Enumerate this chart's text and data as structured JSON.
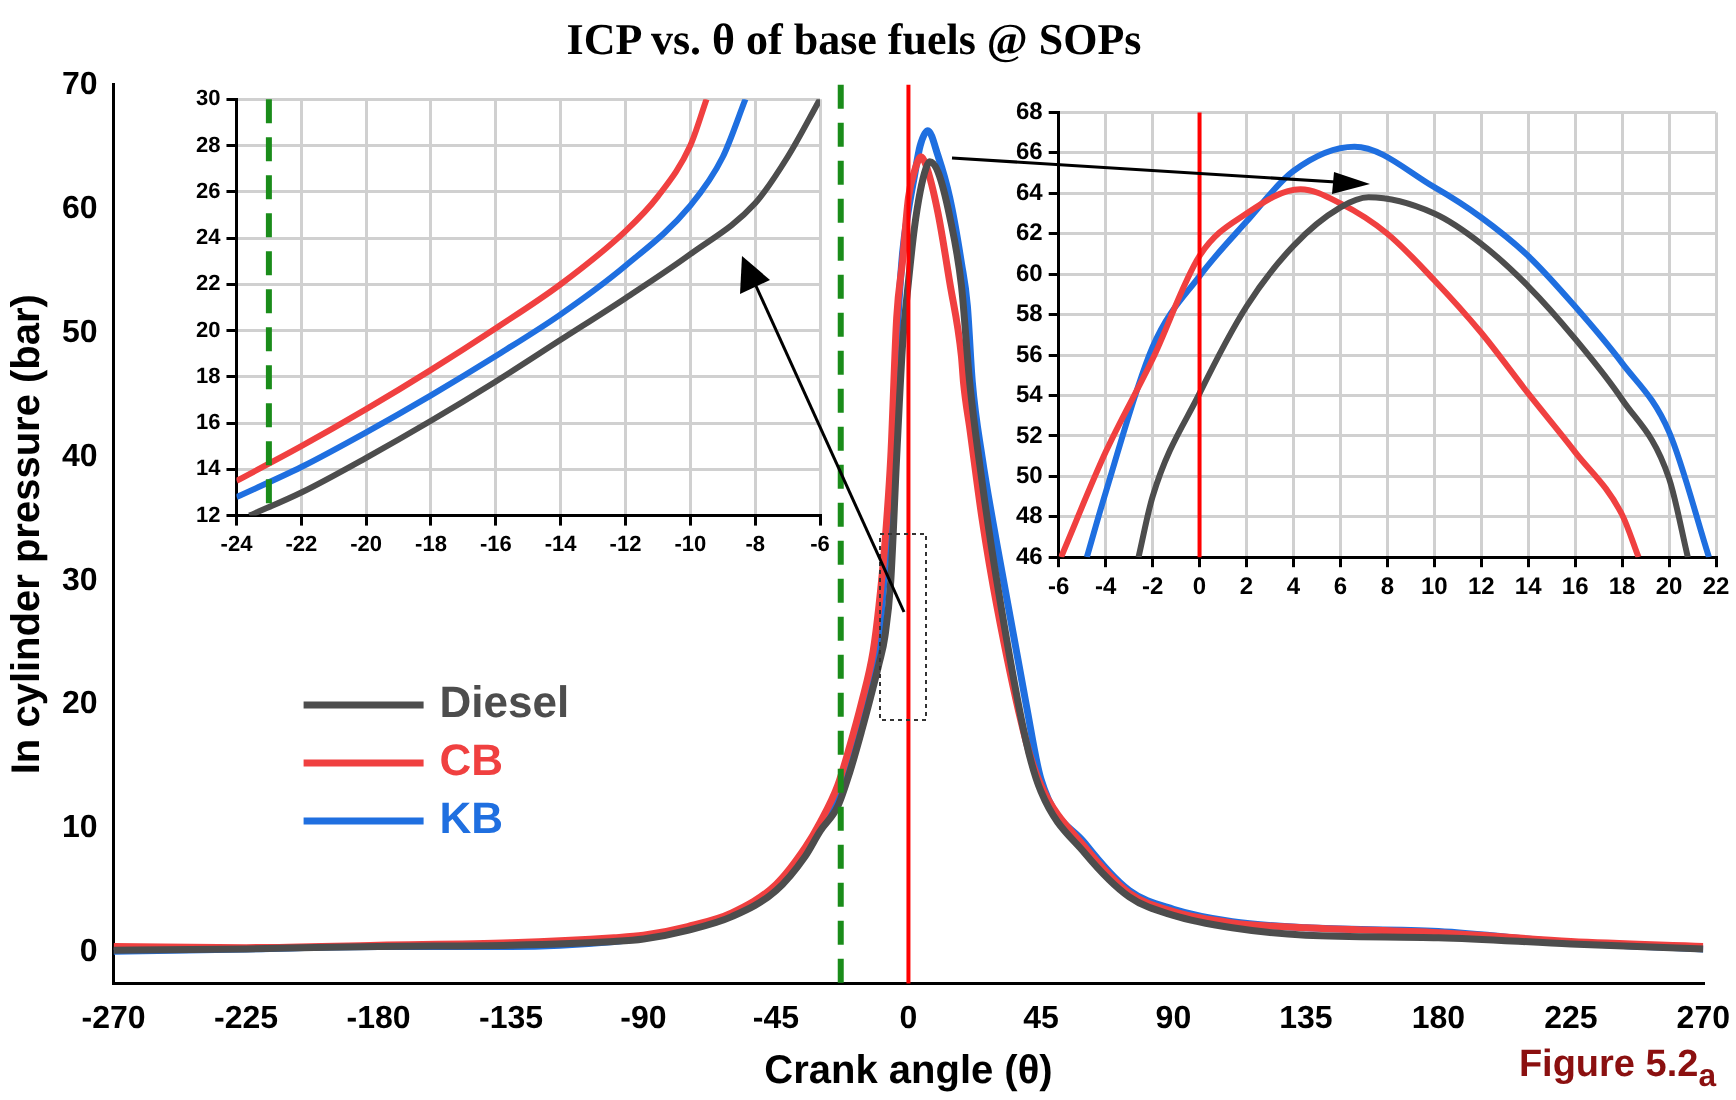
{
  "chart_data": [
    {
      "type": "line",
      "title": "ICP vs. θ of base fuels @ SOPs",
      "xlabel": "Crank angle (θ)",
      "ylabel": "In cylinder pressure (bar)",
      "annotations": [
        "Figure 5.2$_{a}$"
      ],
      "xlim": [
        -270,
        270
      ],
      "xticks": [
        -270,
        -225,
        -180,
        -135,
        -90,
        -45,
        0,
        45,
        90,
        135,
        180,
        225,
        270
      ],
      "ylim": [
        -2.5,
        70
      ],
      "yticks": [
        0,
        10,
        20,
        30,
        40,
        50,
        60,
        70
      ],
      "legend": "left",
      "ref_lines": [
        {
          "axis": "x",
          "value": -23,
          "color": "#1a8c1a",
          "line_style": "dashed"
        },
        {
          "axis": "x",
          "value": 0,
          "color": "#ff0000",
          "line_style": "solid"
        }
      ],
      "series": [
        {
          "name": "Diesel",
          "color": "#4d4d4d",
          "x": [
            -270,
            -225,
            -180,
            -135,
            -100,
            -90,
            -75,
            -60,
            -45,
            -35,
            -30,
            -24,
            -20,
            -16,
            -12,
            -10,
            -8,
            -6,
            -4,
            -2,
            0,
            2,
            4,
            6,
            7.2,
            10,
            14,
            18,
            20.8,
            25,
            30,
            40,
            45,
            60,
            75,
            90,
            110,
            135,
            180,
            225,
            270
          ],
          "values": [
            0.2,
            0.3,
            0.5,
            0.6,
            0.9,
            1.1,
            1.8,
            2.9,
            5,
            7.8,
            9.8,
            11.8,
            14.5,
            17.8,
            21.4,
            23.3,
            25.5,
            30,
            40,
            49,
            54.1,
            58.4,
            61.4,
            63.3,
            63.8,
            63,
            59.4,
            53.8,
            46,
            38,
            30,
            17,
            13,
            8,
            4.5,
            3,
            2,
            1.4,
            1.2,
            0.7,
            0.3
          ]
        },
        {
          "name": "CB",
          "color": "#f04040",
          "x": [
            -270,
            -225,
            -180,
            -135,
            -100,
            -90,
            -75,
            -60,
            -45,
            -35,
            -30,
            -24,
            -20,
            -16,
            -12,
            -10,
            -8,
            -6,
            -4,
            -2,
            0,
            2,
            4.3,
            6,
            10,
            14,
            18,
            18.7,
            21,
            25,
            30,
            40,
            45,
            60,
            75,
            90,
            110,
            135,
            180,
            225,
            270
          ],
          "values": [
            0.5,
            0.4,
            0.6,
            0.8,
            1.2,
            1.4,
            2.1,
            3.2,
            5.5,
            8.5,
            10.5,
            13.5,
            16.6,
            20.1,
            24.3,
            28,
            33,
            40,
            51.2,
            55.8,
            60.9,
            63,
            64.2,
            63.5,
            59.7,
            54.1,
            48.1,
            46,
            42,
            35,
            28,
            17,
            13.5,
            8.5,
            4.8,
            3.3,
            2.4,
            2,
            1.6,
            0.9,
            0.5
          ]
        },
        {
          "name": "KB",
          "color": "#1f6fe0",
          "x": [
            -270,
            -225,
            -180,
            -135,
            -100,
            -90,
            -75,
            -60,
            -45,
            -35,
            -30,
            -24,
            -20,
            -16,
            -12,
            -10,
            -8,
            -6,
            -4,
            -2,
            0,
            2,
            4,
            6.6,
            10,
            14,
            18,
            20,
            21.7,
            25,
            30,
            40,
            45,
            60,
            75,
            90,
            110,
            135,
            180,
            225,
            270
          ],
          "values": [
            0.1,
            0.3,
            0.5,
            0.5,
            0.9,
            1.2,
            1.9,
            3,
            5.2,
            8,
            10.2,
            12.8,
            15.6,
            18.9,
            22.8,
            25.4,
            31,
            38,
            49.2,
            56.4,
            59.9,
            62.6,
            65.1,
            66.3,
            64.3,
            60.9,
            55.6,
            52.2,
            46,
            40,
            33,
            20,
            14,
            8.8,
            5,
            3.5,
            2.5,
            2,
            1.7,
            0.8,
            0.3
          ]
        }
      ]
    },
    {
      "type": "line",
      "xlim": [
        -24,
        -6
      ],
      "xticks": [
        -24,
        -22,
        -20,
        -18,
        -16,
        -14,
        -12,
        -10,
        -8,
        -6
      ],
      "ylim": [
        12,
        30
      ],
      "yticks": [
        12,
        14,
        16,
        18,
        20,
        22,
        24,
        26,
        28,
        30
      ],
      "grid": true,
      "ref_lines": [
        {
          "axis": "x",
          "value": -23,
          "color": "#1a8c1a",
          "line_style": "dashed"
        }
      ],
      "series": [
        {
          "color": "#4d4d4d",
          "x": [
            -23.6,
            -22,
            -20,
            -18,
            -16,
            -14,
            -12,
            -10,
            -8,
            -7,
            -6
          ],
          "values": [
            12,
            13,
            14.5,
            16.1,
            17.8,
            19.6,
            21.4,
            23.3,
            25.5,
            27.5,
            30
          ]
        },
        {
          "color": "#f04040",
          "x": [
            -24,
            -22,
            -20,
            -18,
            -16,
            -14,
            -12,
            -11,
            -10,
            -9.5
          ],
          "values": [
            13.5,
            15,
            16.6,
            18.3,
            20.1,
            22,
            24.3,
            25.8,
            28,
            30
          ]
        },
        {
          "color": "#1f6fe0",
          "x": [
            -24,
            -22,
            -20,
            -18,
            -16,
            -14,
            -12,
            -10,
            -9,
            -8.3
          ],
          "values": [
            12.8,
            14.1,
            15.6,
            17.2,
            18.9,
            20.7,
            22.8,
            25.4,
            27.5,
            30
          ]
        }
      ]
    },
    {
      "type": "line",
      "xlim": [
        -6,
        22
      ],
      "xticks": [
        -6,
        -4,
        -2,
        0,
        2,
        4,
        6,
        8,
        10,
        12,
        14,
        16,
        18,
        20,
        22
      ],
      "ylim": [
        46,
        68
      ],
      "yticks": [
        46,
        48,
        50,
        52,
        54,
        56,
        58,
        60,
        62,
        64,
        66,
        68
      ],
      "grid": true,
      "ref_lines": [
        {
          "axis": "x",
          "value": 0,
          "color": "#ff0000",
          "line_style": "solid"
        }
      ],
      "series": [
        {
          "color": "#4d4d4d",
          "x": [
            -2.6,
            -2,
            0,
            2,
            4,
            6,
            7.2,
            10,
            12,
            14,
            16,
            18,
            20,
            20.8
          ],
          "values": [
            46,
            49,
            54.1,
            58.4,
            61.4,
            63.3,
            63.8,
            63,
            61.5,
            59.4,
            56.8,
            53.8,
            49.9,
            46
          ]
        },
        {
          "color": "#f04040",
          "x": [
            -5.9,
            -4,
            -2,
            0,
            2,
            4.3,
            6,
            8,
            10,
            12,
            14,
            16,
            18,
            18.7
          ],
          "values": [
            46,
            51.2,
            55.8,
            60.9,
            63,
            64.2,
            63.5,
            62,
            59.7,
            57.1,
            54.1,
            51.2,
            48.1,
            46
          ]
        },
        {
          "color": "#1f6fe0",
          "x": [
            -4.8,
            -4,
            -2,
            0,
            2,
            4,
            6.6,
            10,
            12,
            14,
            16,
            18,
            20,
            21.7
          ],
          "values": [
            46,
            49.2,
            56.4,
            59.9,
            62.6,
            65.1,
            66.3,
            64.3,
            62.8,
            60.9,
            58.4,
            55.6,
            52.2,
            46
          ]
        }
      ]
    }
  ]
}
